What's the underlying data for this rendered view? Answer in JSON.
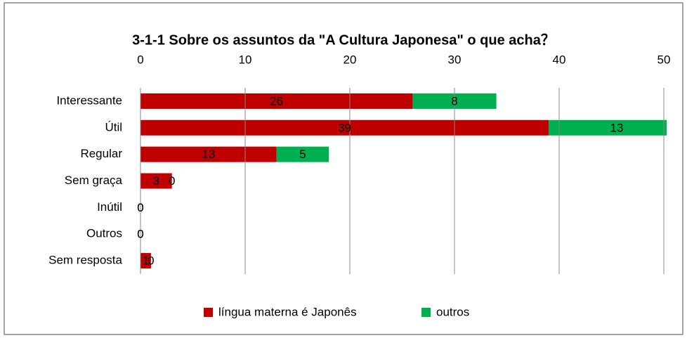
{
  "chart_data": {
    "type": "bar",
    "orientation": "horizontal",
    "stacked": true,
    "title": "3-1-1 Sobre os assuntos da \"A Cultura Japonesa\" o que acha？",
    "categories": [
      "Interessante",
      "Útil",
      "Regular",
      "Sem graça",
      "Inútil",
      "Outros",
      "Sem resposta"
    ],
    "series": [
      {
        "name": "língua materna é Japonês",
        "color": "#c00000",
        "values": [
          26,
          39,
          13,
          3,
          0,
          0,
          1
        ]
      },
      {
        "name": "outros",
        "color": "#00b050",
        "values": [
          8,
          13,
          5,
          0,
          0,
          0,
          0
        ]
      }
    ],
    "xlim": [
      0,
      50
    ],
    "xticks": [
      0,
      10,
      20,
      30,
      40,
      50
    ],
    "grid": true,
    "legend": "bottom"
  }
}
